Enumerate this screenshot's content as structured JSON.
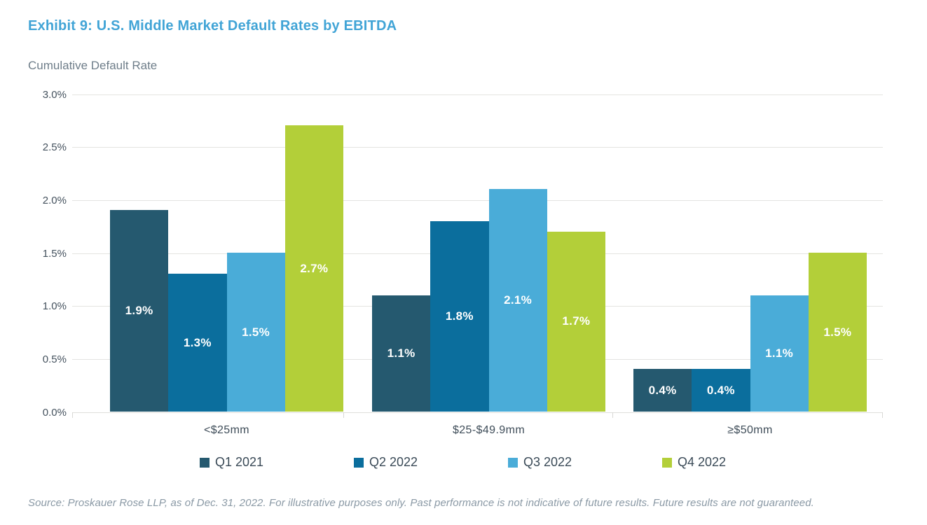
{
  "title": "Exhibit 9: U.S. Middle Market Default Rates by EBITDA",
  "y_axis_heading": "Cumulative Default Rate",
  "source_note": "Source: Proskauer Rose LLP, as of Dec. 31, 2022. For illustrative purposes only. Past performance is not indicative of future results. Future results are not guaranteed.",
  "colors": {
    "title_blue": "#41a4d6",
    "gridline": "#e4e4e1",
    "tick_text": "#45525e",
    "category_text": "#3e4c58",
    "legend_text": "#3a4a57",
    "source_text": "#8a99a5",
    "bar_label_text": "#ffffff"
  },
  "chart_data": {
    "type": "bar",
    "title": "Exhibit 9: U.S. Middle Market Default Rates by EBITDA",
    "ylabel": "Cumulative Default Rate",
    "xlabel": "",
    "ylim": [
      0,
      3.0
    ],
    "grid": true,
    "legend_position": "bottom",
    "categories": [
      "<$25mm",
      "$25-$49.9mm",
      "≥$50mm"
    ],
    "yticks": [
      {
        "value": 0.0,
        "label": "0.0%"
      },
      {
        "value": 0.5,
        "label": "0.5%"
      },
      {
        "value": 1.0,
        "label": "1.0%"
      },
      {
        "value": 1.5,
        "label": "1.5%"
      },
      {
        "value": 2.0,
        "label": "2.0%"
      },
      {
        "value": 2.5,
        "label": "2.5%"
      },
      {
        "value": 3.0,
        "label": "3.0%"
      }
    ],
    "series": [
      {
        "name": "Q1 2021",
        "color": "#25596f",
        "values": [
          1.9,
          1.1,
          0.4
        ],
        "labels": [
          "1.9%",
          "1.1%",
          "0.4%"
        ]
      },
      {
        "name": "Q2 2022",
        "color": "#0b6e9d",
        "values": [
          1.3,
          1.8,
          0.4
        ],
        "labels": [
          "1.3%",
          "1.8%",
          "0.4%"
        ]
      },
      {
        "name": "Q3 2022",
        "color": "#4aacd8",
        "values": [
          1.5,
          2.1,
          1.1
        ],
        "labels": [
          "1.5%",
          "2.1%",
          "1.1%"
        ]
      },
      {
        "name": "Q4 2022",
        "color": "#b3cf39",
        "values": [
          2.7,
          1.7,
          1.5
        ],
        "labels": [
          "2.7%",
          "1.7%",
          "1.5%"
        ]
      }
    ]
  }
}
